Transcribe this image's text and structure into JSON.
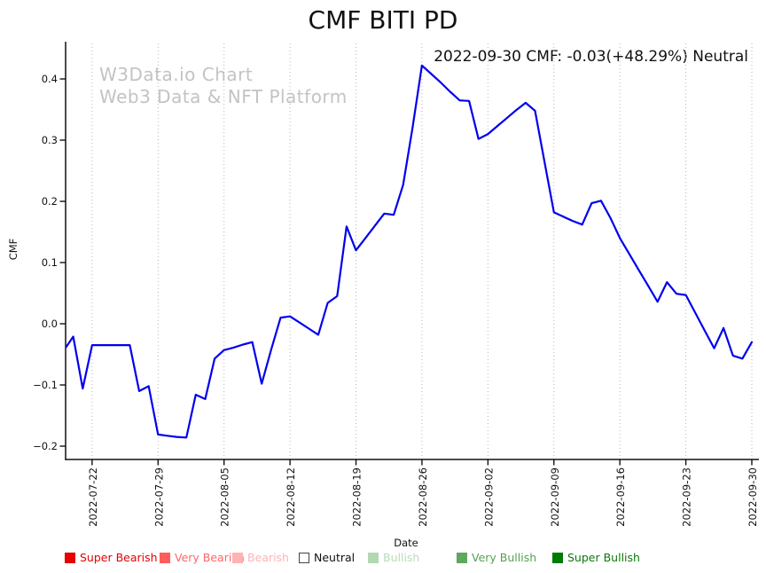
{
  "chart_data": {
    "type": "line",
    "title": "CMF BITI PD",
    "annotation": "2022-09-30 CMF: -0.03(+48.29%) Neutral",
    "watermark_line1": "W3Data.io Chart",
    "watermark_line2": "Web3 Data & NFT Platform",
    "xlabel": "Date",
    "ylabel": "CMF",
    "grid": "vertical-dotted",
    "line_color": "#0000ee",
    "grid_color": "#b5b5b5",
    "axis_color": "#111111",
    "watermark_color": "#c3c3c3",
    "ylim": [
      -0.22,
      0.44
    ],
    "y_ticks": [
      0.4,
      0.3,
      0.2,
      0.1,
      0.0,
      -0.1,
      -0.2
    ],
    "x_tick_labels": [
      "2022-07-22",
      "2022-07-29",
      "2022-08-05",
      "2022-08-12",
      "2022-08-19",
      "2022-08-26",
      "2022-09-02",
      "2022-09-09",
      "2022-09-16",
      "2022-09-23",
      "2022-09-30"
    ],
    "series": [
      {
        "name": "CMF",
        "dates": [
          "2022-07-19",
          "2022-07-20",
          "2022-07-21",
          "2022-07-22",
          "2022-07-23",
          "2022-07-24",
          "2022-07-25",
          "2022-07-26",
          "2022-07-27",
          "2022-07-28",
          "2022-07-29",
          "2022-07-30",
          "2022-07-31",
          "2022-08-01",
          "2022-08-02",
          "2022-08-03",
          "2022-08-04",
          "2022-08-05",
          "2022-08-06",
          "2022-08-07",
          "2022-08-08",
          "2022-08-09",
          "2022-08-10",
          "2022-08-11",
          "2022-08-12",
          "2022-08-13",
          "2022-08-14",
          "2022-08-15",
          "2022-08-16",
          "2022-08-17",
          "2022-08-18",
          "2022-08-19",
          "2022-08-20",
          "2022-08-21",
          "2022-08-22",
          "2022-08-23",
          "2022-08-24",
          "2022-08-25",
          "2022-08-26",
          "2022-08-27",
          "2022-08-28",
          "2022-08-29",
          "2022-08-30",
          "2022-08-31",
          "2022-09-01",
          "2022-09-02",
          "2022-09-03",
          "2022-09-04",
          "2022-09-05",
          "2022-09-06",
          "2022-09-07",
          "2022-09-08",
          "2022-09-09",
          "2022-09-10",
          "2022-09-11",
          "2022-09-12",
          "2022-09-13",
          "2022-09-14",
          "2022-09-15",
          "2022-09-16",
          "2022-09-17",
          "2022-09-18",
          "2022-09-19",
          "2022-09-20",
          "2022-09-21",
          "2022-09-22",
          "2022-09-23",
          "2022-09-24",
          "2022-09-25",
          "2022-09-26",
          "2022-09-27",
          "2022-09-28",
          "2022-09-29",
          "2022-09-30"
        ],
        "values": [
          -0.038,
          -0.021,
          -0.106,
          -0.035,
          -0.035,
          -0.035,
          -0.035,
          -0.035,
          -0.11,
          -0.102,
          -0.181,
          -0.183,
          -0.185,
          -0.186,
          -0.116,
          -0.123,
          -0.057,
          -0.043,
          -0.039,
          -0.034,
          -0.03,
          -0.098,
          -0.042,
          0.01,
          0.012,
          0.002,
          -0.008,
          -0.018,
          0.034,
          0.045,
          0.159,
          0.12,
          0.14,
          0.16,
          0.18,
          0.178,
          0.227,
          0.32,
          0.422,
          0.408,
          0.394,
          0.379,
          0.365,
          0.364,
          0.302,
          0.31,
          0.323,
          0.336,
          0.349,
          0.361,
          0.348,
          0.265,
          0.182,
          0.175,
          0.168,
          0.162,
          0.197,
          0.201,
          0.173,
          0.14,
          0.114,
          0.088,
          0.062,
          0.036,
          0.068,
          0.049,
          0.047,
          0.018,
          -0.011,
          -0.04,
          -0.007,
          -0.052,
          -0.057,
          -0.03
        ]
      }
    ],
    "legend_items": [
      {
        "label": "Super Bearish",
        "swatch": "#ee0000",
        "border": "#cc0000",
        "text_color": "#e60000"
      },
      {
        "label": "Very Bearish",
        "swatch": "#ff5c5c",
        "border": "#ff5c5c",
        "text_color": "#ff6666"
      },
      {
        "label": "Bearish",
        "swatch": "#ffb3b3",
        "border": "#ffb3b3",
        "text_color": "#ffb3b3"
      },
      {
        "label": "Neutral",
        "swatch": "#ffffff",
        "border": "#444444",
        "text_color": "#111111"
      },
      {
        "label": "Bullish",
        "swatch": "#b2d8b2",
        "border": "#b2d8b2",
        "text_color": "#b7dcb7"
      },
      {
        "label": "Very Bullish",
        "swatch": "#5fa85f",
        "border": "#5fa85f",
        "text_color": "#55a055"
      },
      {
        "label": "Super Bullish",
        "swatch": "#007a00",
        "border": "#007a00",
        "text_color": "#0a7a0a"
      }
    ]
  }
}
